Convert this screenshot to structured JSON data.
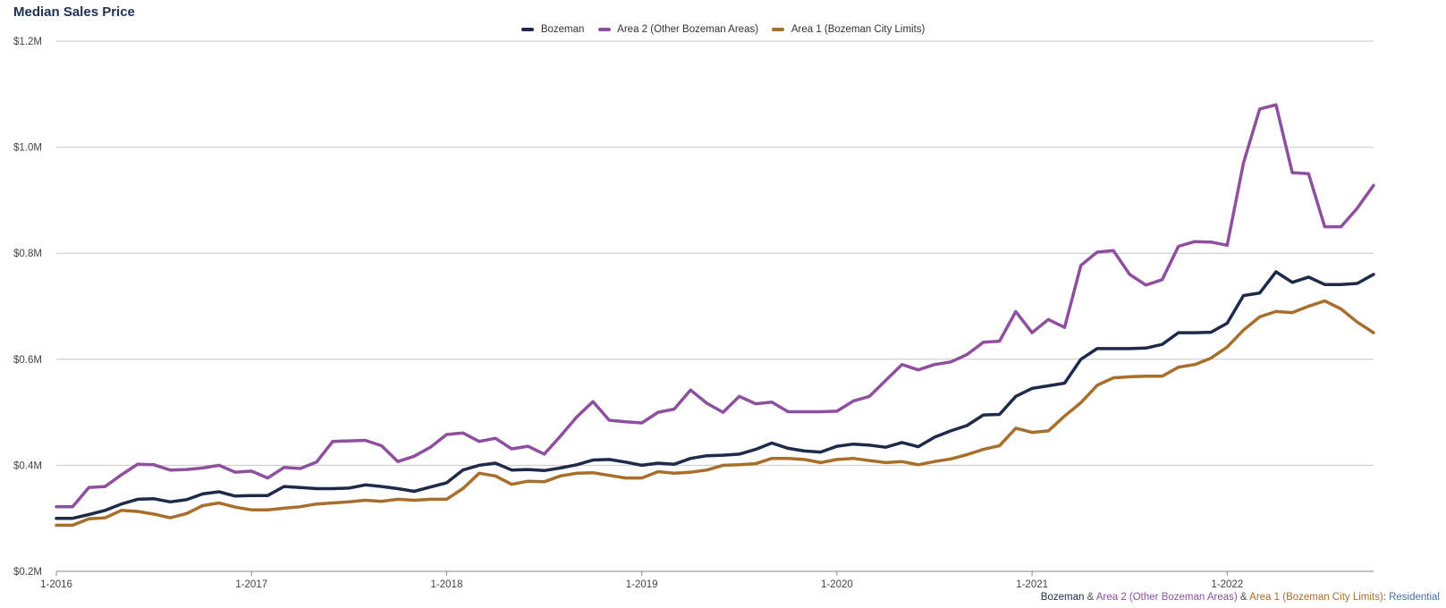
{
  "chart_data": {
    "type": "line",
    "title": "Median Sales Price",
    "xlabel": "",
    "ylabel": "",
    "ylim": [
      200000,
      1200000
    ],
    "yticks": [
      200000,
      400000,
      600000,
      800000,
      1000000,
      1200000
    ],
    "ytick_labels": [
      "$0.2M",
      "$0.4M",
      "$0.6M",
      "$0.8M",
      "$1.0M",
      "$1.2M"
    ],
    "x_start_index": 0,
    "x_end_index": 81,
    "xticks": [
      0,
      12,
      24,
      36,
      48,
      60,
      72
    ],
    "xtick_labels": [
      "1-2016",
      "1-2017",
      "1-2018",
      "1-2019",
      "1-2020",
      "1-2021",
      "1-2022"
    ],
    "grid": true,
    "legend_position": "top-center",
    "series": [
      {
        "name": "Bozeman",
        "color": "#1e2a4a",
        "values": [
          300000,
          300000,
          307000,
          315000,
          327000,
          336000,
          337000,
          331000,
          335000,
          346000,
          350000,
          342000,
          343000,
          343000,
          360000,
          358000,
          356000,
          356000,
          357000,
          363000,
          360000,
          356000,
          351000,
          359000,
          367000,
          391000,
          400000,
          404000,
          391000,
          392000,
          390000,
          395000,
          401000,
          410000,
          411000,
          406000,
          400000,
          404000,
          402000,
          413000,
          418000,
          419000,
          421000,
          430000,
          442000,
          432000,
          427000,
          425000,
          436000,
          440000,
          438000,
          434000,
          443000,
          435000,
          453000,
          465000,
          475000,
          495000,
          496000,
          530000,
          545000,
          550000,
          555000,
          600000,
          620000,
          620000,
          620000,
          621000,
          628000,
          650000,
          650000,
          651000,
          668000,
          720000,
          725000,
          765000,
          745000,
          755000,
          741000,
          741000,
          743000,
          760000
        ]
      },
      {
        "name": "Area 2 (Other Bozeman Areas)",
        "color": "#8e4f9e",
        "values": [
          322000,
          322000,
          358000,
          360000,
          382000,
          402000,
          401000,
          391000,
          392000,
          395000,
          400000,
          387000,
          389000,
          376000,
          396000,
          394000,
          406000,
          445000,
          446000,
          447000,
          437000,
          407000,
          417000,
          434000,
          458000,
          461000,
          445000,
          451000,
          431000,
          436000,
          421000,
          455000,
          491000,
          520000,
          485000,
          482000,
          480000,
          500000,
          506000,
          542000,
          517000,
          500000,
          530000,
          516000,
          519000,
          501000,
          501000,
          501000,
          502000,
          521000,
          530000,
          560000,
          590000,
          580000,
          590000,
          595000,
          609000,
          632000,
          634000,
          690000,
          650000,
          675000,
          660000,
          777000,
          802000,
          805000,
          760000,
          740000,
          750000,
          813000,
          822000,
          821000,
          815000,
          970000,
          1072000,
          1080000,
          952000,
          950000,
          850000,
          850000,
          885000,
          928000
        ]
      },
      {
        "name": "Area 1 (Bozeman City Limits)",
        "color": "#a86e2c",
        "values": [
          287000,
          287000,
          299000,
          301000,
          315000,
          313000,
          308000,
          301000,
          309000,
          324000,
          329000,
          321000,
          316000,
          316000,
          319000,
          322000,
          327000,
          329000,
          331000,
          334000,
          332000,
          336000,
          334000,
          336000,
          336000,
          356000,
          385000,
          380000,
          364000,
          370000,
          369000,
          380000,
          385000,
          386000,
          381000,
          376000,
          376000,
          388000,
          385000,
          387000,
          391000,
          400000,
          401000,
          403000,
          413000,
          413000,
          411000,
          405000,
          411000,
          413000,
          409000,
          405000,
          407000,
          401000,
          407000,
          412000,
          420000,
          430000,
          437000,
          470000,
          462000,
          465000,
          493000,
          518000,
          551000,
          565000,
          567000,
          568000,
          568000,
          585000,
          590000,
          602000,
          623000,
          655000,
          680000,
          690000,
          688000,
          700000,
          710000,
          695000,
          670000,
          650000
        ]
      }
    ],
    "caption": {
      "parts": [
        {
          "text": "Bozeman",
          "color": "#1e2a4a"
        },
        {
          "text": " & ",
          "color": "#555555"
        },
        {
          "text": "Area 2 (Other Bozeman Areas)",
          "color": "#8e4f9e"
        },
        {
          "text": " & ",
          "color": "#555555"
        },
        {
          "text": "Area 1 (Bozeman City Limits)",
          "color": "#a86e2c"
        },
        {
          "text": ": ",
          "color": "#555555"
        },
        {
          "text": "Residential",
          "color": "#4a6fa5"
        }
      ]
    }
  }
}
